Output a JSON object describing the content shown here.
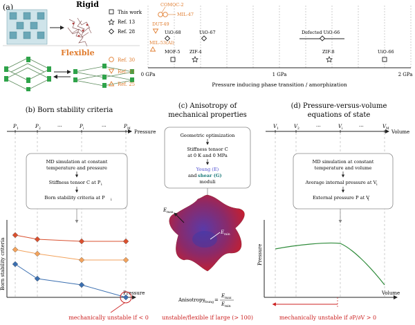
{
  "panel_a": {
    "label": "(a)",
    "rigid_label": "Rigid",
    "flexible_label": "Flexible",
    "legend": [
      {
        "label": "This work",
        "marker": "square"
      },
      {
        "label": "Ref. 13",
        "marker": "star"
      },
      {
        "label": "Ref. 28",
        "marker": "diamond"
      },
      {
        "label": "Ref. 30",
        "marker": "circle"
      },
      {
        "label": "Ref. 31",
        "marker": "triangle-down"
      },
      {
        "label": "Ref. 25",
        "marker": "triangle-up"
      }
    ],
    "axis_title": "Pressure inducing phase transition / amorphization",
    "ticks": [
      "0 GPa",
      "1 GPa",
      "2 GPa"
    ],
    "points": [
      {
        "label": "COMOC-2",
        "pressure_gpa": 0.1,
        "marker": "circle"
      },
      {
        "label": "MIL-47",
        "pressure_gpa": 0.13,
        "marker": "circle"
      },
      {
        "label": "DUT-49",
        "pressure_gpa": 0.05,
        "marker": "triangle-down"
      },
      {
        "label": "MIL-53(Al)",
        "pressure_gpa": 0.0,
        "marker": "triangle-up"
      },
      {
        "label": "UiO-68",
        "pressure_gpa": 0.2,
        "marker": "diamond"
      },
      {
        "label": "UiO-67",
        "pressure_gpa": 0.45,
        "marker": "diamond"
      },
      {
        "label": "Defected UiO-66",
        "pressure_gpa": 1.3,
        "marker": "diamond"
      },
      {
        "label": "MOF-5",
        "pressure_gpa": 0.2,
        "marker": "square"
      },
      {
        "label": "ZIF-4",
        "pressure_gpa": 0.35,
        "marker": "star"
      },
      {
        "label": "ZIF-8",
        "pressure_gpa": 1.34,
        "marker": "star"
      },
      {
        "label": "UiO-66",
        "pressure_gpa": 1.9,
        "marker": "square"
      }
    ]
  },
  "panel_b": {
    "title": "(b) Born stability criteria",
    "axis_label": "Pressure",
    "ticks": [
      "P",
      "P",
      "···",
      "P",
      "···",
      "P"
    ],
    "tick_subs": [
      "1",
      "2",
      "",
      "i",
      "",
      "M"
    ],
    "box_lines": [
      "MD simulation at constant",
      "temperature and pressure",
      "Stiffness tensor C at P",
      "Born stability criteria at P"
    ],
    "box_subs": [
      "i",
      "i"
    ],
    "ylabel": "Born stability criteria",
    "series": [
      {
        "name": "",
        "color": "#d9502f",
        "values": [
          3,
          2.8,
          2.7,
          2.7
        ]
      },
      {
        "name": "",
        "color": "#f2a25c",
        "values": [
          2.3,
          2.1,
          1.8,
          1.8
        ]
      },
      {
        "name": "",
        "color": "#3b6fb0",
        "values": [
          1.6,
          0.9,
          0.6,
          0
        ]
      }
    ],
    "note": "mechanically unstable if < 0"
  },
  "panel_c": {
    "title_line1": "(c) Anisotropy of",
    "title_line2": "mechanical properties",
    "box_lines": [
      "Geometric optimization",
      "Stiffness tensor C",
      "at 0 K and 0 MPa"
    ],
    "young": "Young (E)",
    "and": "and",
    "shear": "shear (G)",
    "moduli": "moduli",
    "emax": "E",
    "emax_sub": "max",
    "emin": "E",
    "emin_sub": "min",
    "formula_lhs": "Anisotropy",
    "formula_sub": "Young",
    "formula_num": "E",
    "formula_num_sub": "max",
    "formula_den": "E",
    "formula_den_sub": "min",
    "note": "unstable/flexible if large (> 100)"
  },
  "panel_d": {
    "title_line1": "(d) Pressure-versus-volume",
    "title_line2": "equations of state",
    "axis_label": "Volume",
    "ticks": [
      "V",
      "V",
      "···",
      "V",
      "···",
      "V"
    ],
    "tick_subs": [
      "1",
      "2",
      "",
      "i",
      "",
      "M"
    ],
    "box_lines": [
      "MD simulation at constant",
      "temperature and volume",
      "Average internal pressure at V",
      "External pressure P at V"
    ],
    "box_subs": [
      "i",
      "i"
    ],
    "ylabel": "Pressure",
    "xlabel": "Volume",
    "note": "mechanically unstable if ∂P/∂V > 0",
    "curve_color": "#2e8b3a"
  },
  "colors": {
    "orange": "#e07b2c",
    "red": "#cc2222",
    "box_border": "#888888",
    "grid": "#9a9a9a"
  }
}
